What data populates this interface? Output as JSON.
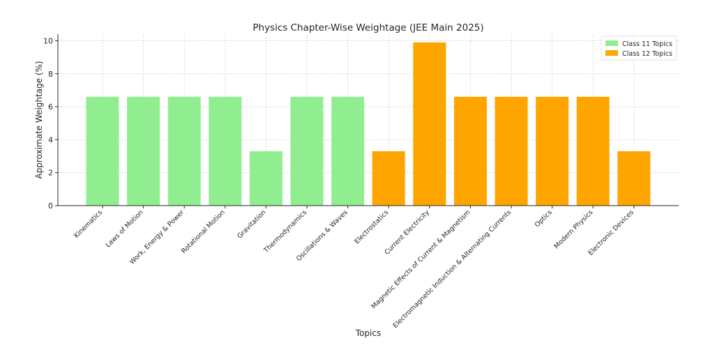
{
  "chart_data": {
    "type": "bar",
    "title": "Physics Chapter-Wise Weightage (JEE Main 2025)",
    "xlabel": "Topics",
    "ylabel": "Approximate Weightage (%)",
    "ylim": [
      0,
      10.4
    ],
    "yticks": [
      0,
      2,
      4,
      6,
      8,
      10
    ],
    "grid": true,
    "legend_position": "top-right",
    "categories": [
      "Kinematics",
      "Laws of Motion",
      "Work, Energy & Power",
      "Rotational Motion",
      "Gravitation",
      "Thermodynamics",
      "Oscillations & Waves",
      "Electrostatics",
      "Current Electricity",
      "Magnetic Effects of Current & Magnetism",
      "Electromagnetic Induction & Alternating Currents",
      "Optics",
      "Modern Physics",
      "Electronic Devices"
    ],
    "values": [
      6.6,
      6.6,
      6.6,
      6.6,
      3.3,
      6.6,
      6.6,
      3.3,
      9.9,
      6.6,
      6.6,
      6.6,
      6.6,
      3.3
    ],
    "groups": [
      "Class 11 Topics",
      "Class 11 Topics",
      "Class 11 Topics",
      "Class 11 Topics",
      "Class 11 Topics",
      "Class 11 Topics",
      "Class 11 Topics",
      "Class 12 Topics",
      "Class 12 Topics",
      "Class 12 Topics",
      "Class 12 Topics",
      "Class 12 Topics",
      "Class 12 Topics",
      "Class 12 Topics"
    ],
    "legend": [
      {
        "name": "Class 11 Topics",
        "color": "#90ee90"
      },
      {
        "name": "Class 12 Topics",
        "color": "#ffa500"
      }
    ]
  }
}
